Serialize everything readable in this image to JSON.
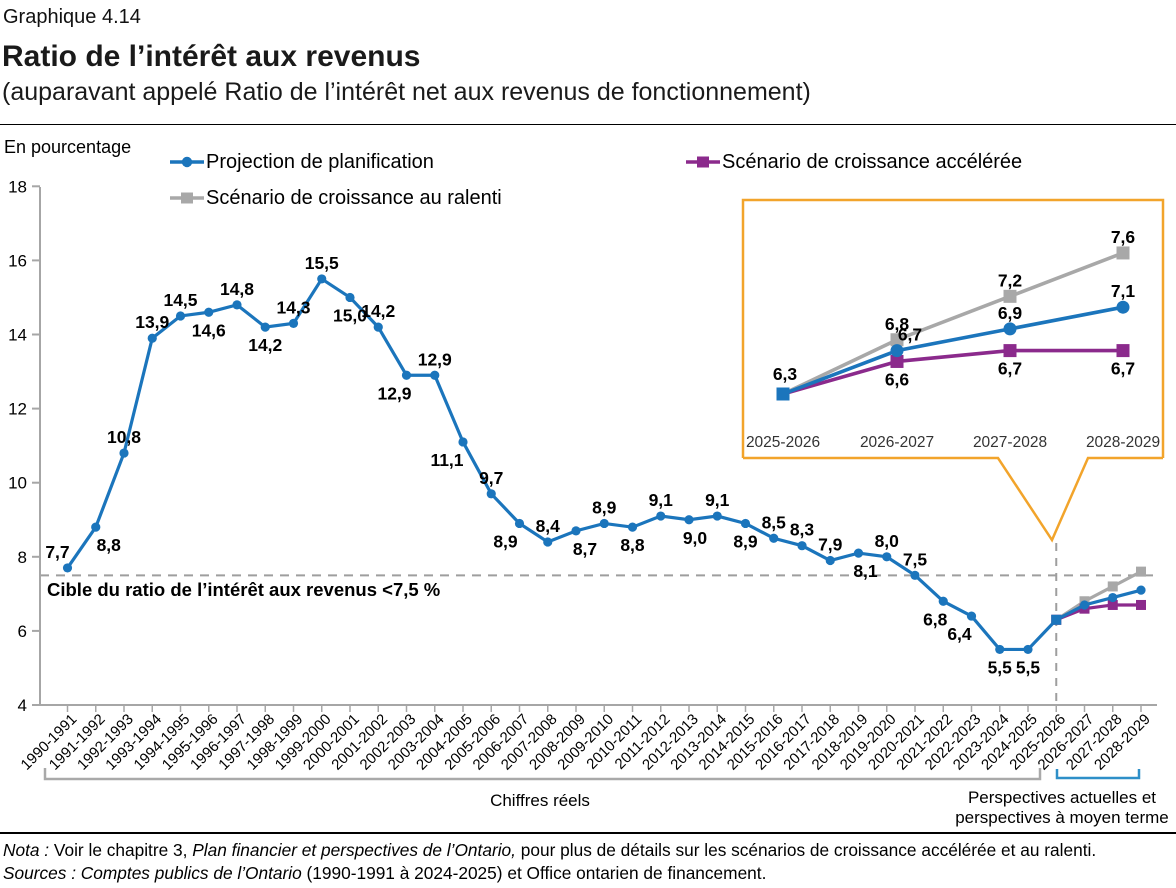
{
  "header": {
    "label": "Graphique 4.14",
    "title": "Ratio de l’intérêt aux revenus",
    "subtitle": "(auparavant appelé Ratio de l’intérêt net aux revenus de fonctionnement)"
  },
  "colors": {
    "projection_blue": "#1B75BC",
    "slow_gray": "#A8A8A8",
    "fast_purple": "#8B2A8C",
    "callout_orange": "#F2A42B",
    "dashed_gray": "#9E9E9E",
    "axis_gray": "#A6A6A6",
    "outlook_blue": "#2E8FC8",
    "bracket_gray": "#A9A9A9"
  },
  "legend": {
    "items": [
      {
        "label": "Projection de planification",
        "color": "#1B75BC",
        "marker": "circle"
      },
      {
        "label": "Scénario de croissance au ralenti",
        "color": "#A8A8A8",
        "marker": "square"
      },
      {
        "label": "Scénario de croissance accélérée",
        "color": "#8B2A8C",
        "marker": "square"
      }
    ]
  },
  "chart_data": {
    "type": "line",
    "unit_label": "En pourcentage",
    "ylim": [
      4,
      18
    ],
    "y_ticks": [
      4,
      6,
      8,
      10,
      12,
      14,
      16,
      18
    ],
    "categories": [
      "1990-1991",
      "1991-1992",
      "1992-1993",
      "1993-1994",
      "1994-1995",
      "1995-1996",
      "1996-1997",
      "1997-1998",
      "1998-1999",
      "1999-2000",
      "2000-2001",
      "2001-2002",
      "2002-2003",
      "2003-2004",
      "2004-2005",
      "2005-2006",
      "2006-2007",
      "2007-2008",
      "2008-2009",
      "2009-2010",
      "2010-2011",
      "2011-2012",
      "2012-2013",
      "2013-2014",
      "2014-2015",
      "2015-2016",
      "2016-2017",
      "2017-2018",
      "2018-2019",
      "2019-2020",
      "2020-2021",
      "2021-2022",
      "2022-2023",
      "2023-2024",
      "2024-2025",
      "2025-2026",
      "2026-2027",
      "2027-2028",
      "2028-2029"
    ],
    "divider_category": "2025-2026",
    "target_line": {
      "value": 7.5,
      "label": "Cible du ratio de l’intérêt aux revenus <7,5 %"
    },
    "series": [
      {
        "name": "Projection de planification",
        "color": "#1B75BC",
        "marker": "circle",
        "start_index": 0,
        "values": [
          7.7,
          8.8,
          10.8,
          13.9,
          14.5,
          14.6,
          14.8,
          14.2,
          14.3,
          15.5,
          15.0,
          14.2,
          12.9,
          12.9,
          11.1,
          9.7,
          8.9,
          8.4,
          8.7,
          8.9,
          8.8,
          9.1,
          9.0,
          9.1,
          8.9,
          8.5,
          8.3,
          7.9,
          8.1,
          8.0,
          7.5,
          6.8,
          6.4,
          5.5,
          5.5,
          6.3,
          6.7,
          6.9,
          7.1
        ],
        "labels": [
          "7,7",
          "8,8",
          "10,8",
          "13,9",
          "14,5",
          "14,6",
          "14,8",
          "14,2",
          "14,3",
          "15,5",
          "15,0",
          "14,2",
          "12,9",
          "12,9",
          "11,1",
          "9,7",
          "8,9",
          "8,4",
          "8,7",
          "8,9",
          "8,8",
          "9,1",
          "9,0",
          "9,1",
          "8,9",
          "8,5",
          "8,3",
          "7,9",
          "8,1",
          "8,0",
          "7,5",
          "6,8",
          "6,4",
          "5,5",
          "5,5"
        ],
        "label_side": [
          "a",
          "b",
          "a",
          "a",
          "a",
          "b",
          "a",
          "b",
          "a",
          "a",
          "b",
          "a",
          "b",
          "a",
          "b",
          "a",
          "b",
          "a",
          "b",
          "a",
          "b",
          "a",
          "b",
          "a",
          "b",
          "a",
          "a",
          "a",
          "b",
          "a",
          "a",
          "b",
          "b",
          "b",
          "b"
        ],
        "label_dx": {
          "0": -10,
          "1": 13,
          "12": -12,
          "14": -16,
          "16": -14,
          "18": 9,
          "22": 6,
          "28": 7,
          "31": -8,
          "32": -12
        }
      },
      {
        "name": "Scénario de croissance au ralenti",
        "color": "#A8A8A8",
        "marker": "square",
        "start_index": 35,
        "values": [
          6.3,
          6.8,
          7.2,
          7.6
        ]
      },
      {
        "name": "Scénario de croissance accélérée",
        "color": "#8B2A8C",
        "marker": "square",
        "start_index": 35,
        "values": [
          6.3,
          6.6,
          6.7,
          6.7
        ]
      }
    ],
    "inset": {
      "categories": [
        "2025-2026",
        "2026-2027",
        "2027-2028",
        "2028-2029"
      ],
      "shared_first_label": "6,3",
      "series": [
        {
          "ref": "Projection de planification",
          "color": "#1B75BC",
          "marker": "circle",
          "values": [
            6.3,
            6.7,
            6.9,
            7.1
          ],
          "labels": [
            null,
            "6,7",
            "6,9",
            "7,1"
          ],
          "sides": [
            null,
            "a",
            "a",
            "a"
          ],
          "dx": {
            "1": 13
          }
        },
        {
          "ref": "Scénario de croissance au ralenti",
          "color": "#A8A8A8",
          "marker": "square",
          "values": [
            6.3,
            6.8,
            7.2,
            7.6
          ],
          "labels": [
            null,
            "6,8",
            "7,2",
            "7,6"
          ],
          "sides": [
            null,
            "a",
            "a",
            "a"
          ]
        },
        {
          "ref": "Scénario de croissance accélérée",
          "color": "#8B2A8C",
          "marker": "square",
          "values": [
            6.3,
            6.6,
            6.7,
            6.7
          ],
          "labels": [
            null,
            "6,6",
            "6,7",
            "6,7"
          ],
          "sides": [
            null,
            "b",
            "b",
            "b"
          ]
        }
      ]
    }
  },
  "footer": {
    "real_label": "Chiffres réels",
    "outlook_lines": [
      "Perspectives actuelles et",
      "perspectives à moyen terme"
    ]
  },
  "notes": {
    "nota_segments": [
      {
        "t": "Nota :",
        "i": true
      },
      {
        "t": " Voir le chapitre 3, ",
        "i": false
      },
      {
        "t": "Plan financier et perspectives de l’Ontario,",
        "i": true
      },
      {
        "t": " pour plus de détails sur les scénarios de croissance accélérée et au ralenti.",
        "i": false
      }
    ],
    "sources_segments": [
      {
        "t": "Sources : Comptes publics de l’Ontario",
        "i": true
      },
      {
        "t": " (1990-1991 à 2024-2025) et Office ontarien de financement.",
        "i": false
      }
    ]
  }
}
